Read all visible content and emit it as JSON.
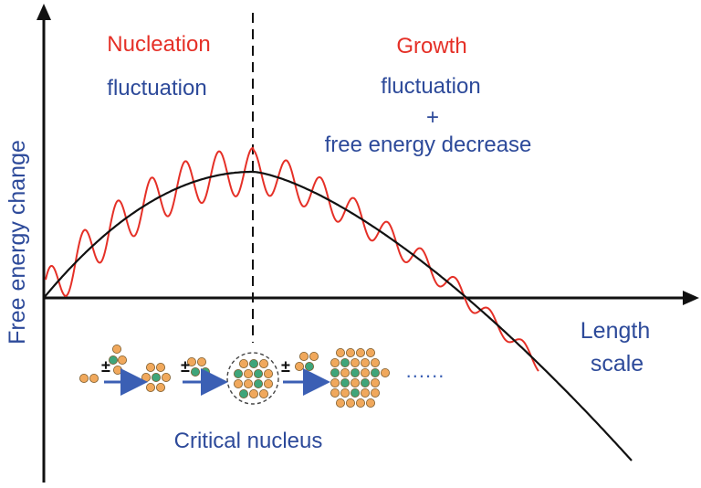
{
  "axes": {
    "y_label": "Free energy change",
    "x_label_line1": "Length",
    "x_label_line2": "scale"
  },
  "regions": {
    "nucleation": {
      "title": "Nucleation",
      "line1": "fluctuation"
    },
    "growth": {
      "title": "Growth",
      "line1": "fluctuation",
      "line2": "+",
      "line3": "free energy decrease"
    }
  },
  "annotations": {
    "critical_nucleus": "Critical nucleus",
    "step_symbol": "±",
    "continuation": "......"
  },
  "colors": {
    "axis": "#111111",
    "smooth_curve": "#111111",
    "fluctuation_curve": "#e53027",
    "heading": "#e53027",
    "text_blue": "#2d4a9a",
    "particle_orange": "#f0a85c",
    "particle_green": "#3fa57a",
    "arrow": "#3b5fb4"
  }
}
